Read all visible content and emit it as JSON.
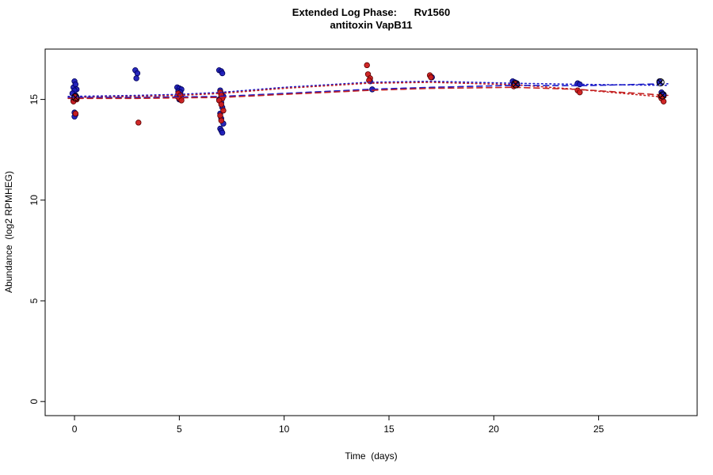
{
  "chart_data": {
    "type": "scatter",
    "title": "Extended Log Phase:      Rv1560",
    "subtitle": "antitoxin VapB11",
    "xlabel": "Time  (days)",
    "ylabel": "Abundance  (log2 RPMHEG)",
    "xlim": [
      -1.4,
      29.7
    ],
    "ylim": [
      -0.7,
      17.5
    ],
    "xticks": [
      0,
      5,
      10,
      15,
      20,
      25
    ],
    "yticks": [
      0,
      5,
      10,
      15
    ],
    "grid": false,
    "legend": "none",
    "colors": {
      "blue": "#1c1cb8",
      "blueStroke": "#00005a",
      "red": "#cf1c1c",
      "redStroke": "#5a0000",
      "blueLine": "#1c1cc8",
      "redLine": "#c42020",
      "marker": "#000000",
      "axis": "#000000"
    },
    "series": [
      {
        "name": "blue-replicate-points",
        "type": "points",
        "color": "blue",
        "points": [
          [
            -0.05,
            15.6
          ],
          [
            0,
            15.9
          ],
          [
            0.05,
            15.75
          ],
          [
            0.1,
            15.5
          ],
          [
            0,
            15.45
          ],
          [
            -0.1,
            15.3
          ],
          [
            0.05,
            15.2
          ],
          [
            0,
            15.1
          ],
          [
            0.1,
            15.05
          ],
          [
            -0.05,
            14.95
          ],
          [
            0,
            14.35
          ],
          [
            0.05,
            14.25
          ],
          [
            0,
            14.15
          ],
          [
            2.9,
            16.45
          ],
          [
            3,
            16.3
          ],
          [
            2.95,
            16.05
          ],
          [
            4.9,
            15.6
          ],
          [
            5,
            15.55
          ],
          [
            5.1,
            15.5
          ],
          [
            4.95,
            15.4
          ],
          [
            5.05,
            15.35
          ],
          [
            5,
            15.25
          ],
          [
            4.9,
            15.15
          ],
          [
            5.1,
            15.1
          ],
          [
            5,
            15
          ],
          [
            6.9,
            16.45
          ],
          [
            7,
            16.4
          ],
          [
            7.05,
            16.3
          ],
          [
            6.95,
            15.45
          ],
          [
            7,
            15.3
          ],
          [
            7.1,
            15.15
          ],
          [
            6.9,
            15
          ],
          [
            7,
            14.85
          ],
          [
            7.05,
            14.6
          ],
          [
            6.95,
            14.3
          ],
          [
            7,
            14.05
          ],
          [
            7.1,
            13.8
          ],
          [
            6.95,
            13.55
          ],
          [
            7,
            13.45
          ],
          [
            7.05,
            13.35
          ],
          [
            14.1,
            15.9
          ],
          [
            14.2,
            15.5
          ],
          [
            17.05,
            16.1
          ],
          [
            20.9,
            15.9
          ],
          [
            21,
            15.85
          ],
          [
            21.1,
            15.8
          ],
          [
            20.95,
            15.75
          ],
          [
            24,
            15.8
          ],
          [
            24.1,
            15.75
          ],
          [
            27.9,
            15.9
          ],
          [
            28,
            15.35
          ],
          [
            28.1,
            15.25
          ]
        ]
      },
      {
        "name": "red-replicate-points",
        "type": "points",
        "color": "red",
        "points": [
          [
            0,
            15.15
          ],
          [
            0.1,
            15
          ],
          [
            -0.05,
            14.9
          ],
          [
            0.05,
            14.3
          ],
          [
            3.05,
            13.85
          ],
          [
            4.95,
            15.3
          ],
          [
            5.05,
            15.2
          ],
          [
            5,
            15.05
          ],
          [
            5.1,
            14.95
          ],
          [
            6.95,
            15.35
          ],
          [
            7,
            15.2
          ],
          [
            7.05,
            15.05
          ],
          [
            6.9,
            14.95
          ],
          [
            7,
            14.75
          ],
          [
            7.1,
            14.45
          ],
          [
            6.95,
            14.2
          ],
          [
            7,
            13.95
          ],
          [
            13.95,
            16.7
          ],
          [
            14,
            16.25
          ],
          [
            14.1,
            16.05
          ],
          [
            14.05,
            15.95
          ],
          [
            16.95,
            16.2
          ],
          [
            17,
            16.1
          ],
          [
            21,
            15.8
          ],
          [
            21.1,
            15.7
          ],
          [
            20.95,
            15.65
          ],
          [
            24,
            15.45
          ],
          [
            24.1,
            15.35
          ],
          [
            27.95,
            15.15
          ],
          [
            28,
            15.05
          ],
          [
            28.1,
            14.9
          ]
        ]
      },
      {
        "name": "blue-dotted-fit",
        "type": "line",
        "dash": "dotted",
        "color": "blueLine",
        "points": [
          [
            -0.3,
            15.15
          ],
          [
            3,
            15.2
          ],
          [
            5,
            15.25
          ],
          [
            7,
            15.35
          ],
          [
            10,
            15.6
          ],
          [
            14,
            15.85
          ],
          [
            17,
            15.9
          ],
          [
            21,
            15.8
          ],
          [
            24,
            15.75
          ],
          [
            28.3,
            15.7
          ]
        ]
      },
      {
        "name": "red-dotted-fit",
        "type": "line",
        "dash": "dotted",
        "color": "redLine",
        "points": [
          [
            -0.3,
            15.1
          ],
          [
            3,
            15.15
          ],
          [
            5,
            15.2
          ],
          [
            7,
            15.3
          ],
          [
            10,
            15.55
          ],
          [
            14,
            15.8
          ],
          [
            17,
            15.85
          ],
          [
            21,
            15.73
          ],
          [
            24,
            15.5
          ],
          [
            28.3,
            15.1
          ]
        ]
      },
      {
        "name": "blue-dashed-fit",
        "type": "line",
        "dash": "dashed",
        "color": "blueLine",
        "points": [
          [
            -0.3,
            15.1
          ],
          [
            3,
            15.1
          ],
          [
            5,
            15.12
          ],
          [
            7,
            15.15
          ],
          [
            10,
            15.3
          ],
          [
            14,
            15.5
          ],
          [
            17,
            15.6
          ],
          [
            21,
            15.7
          ],
          [
            24,
            15.68
          ],
          [
            28.3,
            15.78
          ]
        ]
      },
      {
        "name": "red-dashed-fit",
        "type": "line",
        "dash": "dashed",
        "color": "redLine",
        "points": [
          [
            -0.3,
            15.05
          ],
          [
            3,
            15.05
          ],
          [
            5,
            15.08
          ],
          [
            7,
            15.1
          ],
          [
            10,
            15.25
          ],
          [
            14,
            15.45
          ],
          [
            17,
            15.55
          ],
          [
            21,
            15.6
          ],
          [
            24,
            15.5
          ],
          [
            28.3,
            15.2
          ]
        ]
      },
      {
        "name": "circle-x-outlier-markers",
        "type": "circle-x",
        "color": "marker",
        "points": [
          [
            0.05,
            15.1
          ],
          [
            21.05,
            15.75
          ],
          [
            27.95,
            15.85
          ],
          [
            28.05,
            15.2
          ]
        ]
      }
    ]
  }
}
